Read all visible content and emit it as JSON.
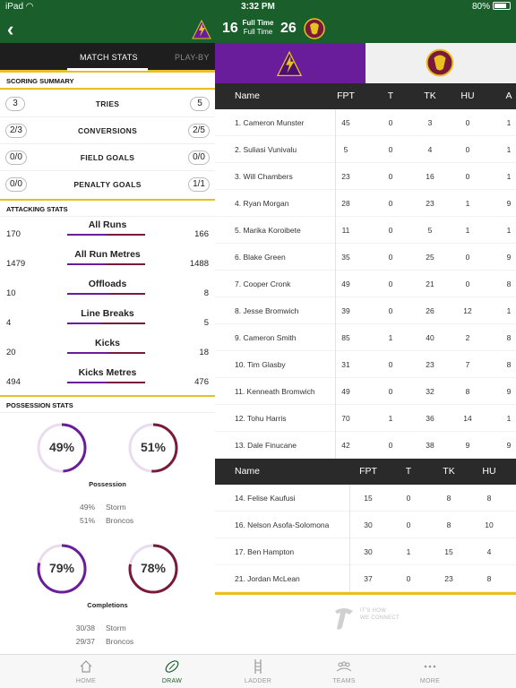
{
  "status_bar": {
    "device": "iPad",
    "time": "3:32 PM",
    "battery": "80%",
    "battery_level": 0.8
  },
  "header": {
    "home_score": "16",
    "away_score": "26",
    "status_line1": "Full Time",
    "status_line2": "Full Time",
    "back_icon": "chevron-left-icon"
  },
  "tabs": {
    "active": "MATCH STATS",
    "inactive": "PLAY-BY"
  },
  "scoring_summary": {
    "title": "SCORING SUMMARY",
    "rows": [
      {
        "label": "TRIES",
        "home": "3",
        "away": "5"
      },
      {
        "label": "CONVERSIONS",
        "home": "2/3",
        "away": "2/5"
      },
      {
        "label": "FIELD GOALS",
        "home": "0/0",
        "away": "0/0"
      },
      {
        "label": "PENALTY GOALS",
        "home": "0/0",
        "away": "1/1"
      }
    ]
  },
  "attacking_stats": {
    "title": "ATTACKING STATS",
    "rows": [
      {
        "label": "All Runs",
        "home": "170",
        "away": "166",
        "home_share": 0.506
      },
      {
        "label": "All Run Metres",
        "home": "1479",
        "away": "1488",
        "home_share": 0.498
      },
      {
        "label": "Offloads",
        "home": "10",
        "away": "8",
        "home_share": 0.556
      },
      {
        "label": "Line Breaks",
        "home": "4",
        "away": "5",
        "home_share": 0.444
      },
      {
        "label": "Kicks",
        "home": "20",
        "away": "18",
        "home_share": 0.526
      },
      {
        "label": "Kicks Metres",
        "home": "494",
        "away": "476",
        "home_share": 0.509
      }
    ]
  },
  "possession_stats": {
    "title": "POSSESSION STATS",
    "blocks": [
      {
        "title": "Possession",
        "home_pct": "49%",
        "away_pct": "51%",
        "home_value": 49,
        "away_value": 51,
        "lines": [
          {
            "value": "49%",
            "team": "Storm"
          },
          {
            "value": "51%",
            "team": "Broncos"
          }
        ]
      },
      {
        "title": "Completions",
        "home_pct": "79%",
        "away_pct": "78%",
        "home_value": 79,
        "away_value": 78,
        "lines": [
          {
            "value": "30/38",
            "team": "Storm"
          },
          {
            "value": "29/37",
            "team": "Broncos"
          }
        ]
      }
    ]
  },
  "player_table": {
    "headers": [
      "Name",
      "FPT",
      "T",
      "TK",
      "HU",
      "A"
    ],
    "rows": [
      {
        "name": "1. Cameron Munster",
        "fpt": "45",
        "t": "0",
        "tk": "3",
        "hu": "0",
        "a": "1"
      },
      {
        "name": "2. Suliasi Vunivalu",
        "fpt": "5",
        "t": "0",
        "tk": "4",
        "hu": "0",
        "a": "1"
      },
      {
        "name": "3. Will Chambers",
        "fpt": "23",
        "t": "0",
        "tk": "16",
        "hu": "0",
        "a": "1"
      },
      {
        "name": "4. Ryan Morgan",
        "fpt": "28",
        "t": "0",
        "tk": "23",
        "hu": "1",
        "a": "9"
      },
      {
        "name": "5. Marika Koroibete",
        "fpt": "11",
        "t": "0",
        "tk": "5",
        "hu": "1",
        "a": "1"
      },
      {
        "name": "6. Blake Green",
        "fpt": "35",
        "t": "0",
        "tk": "25",
        "hu": "0",
        "a": "9"
      },
      {
        "name": "7. Cooper Cronk",
        "fpt": "49",
        "t": "0",
        "tk": "21",
        "hu": "0",
        "a": "8"
      },
      {
        "name": "8. Jesse Bromwich",
        "fpt": "39",
        "t": "0",
        "tk": "26",
        "hu": "12",
        "a": "1"
      },
      {
        "name": "9. Cameron Smith",
        "fpt": "85",
        "t": "1",
        "tk": "40",
        "hu": "2",
        "a": "8"
      },
      {
        "name": "10. Tim Glasby",
        "fpt": "31",
        "t": "0",
        "tk": "23",
        "hu": "7",
        "a": "8"
      },
      {
        "name": "11. Kenneath Bromwich",
        "fpt": "49",
        "t": "0",
        "tk": "32",
        "hu": "8",
        "a": "9"
      },
      {
        "name": "12. Tohu Harris",
        "fpt": "70",
        "t": "1",
        "tk": "36",
        "hu": "14",
        "a": "1"
      },
      {
        "name": "13. Dale Finucane",
        "fpt": "42",
        "t": "0",
        "tk": "38",
        "hu": "9",
        "a": "9"
      }
    ]
  },
  "bench_table": {
    "headers": [
      "Name",
      "FPT",
      "T",
      "TK",
      "HU"
    ],
    "rows": [
      {
        "name": "14. Felise  Kaufusi",
        "fpt": "15",
        "t": "0",
        "tk": "8",
        "hu": "8"
      },
      {
        "name": "16. Nelson Asofa-Solomona",
        "fpt": "30",
        "t": "0",
        "tk": "8",
        "hu": "10"
      },
      {
        "name": "17. Ben Hampton",
        "fpt": "30",
        "t": "1",
        "tk": "15",
        "hu": "4"
      },
      {
        "name": "21. Jordan McLean",
        "fpt": "37",
        "t": "0",
        "tk": "23",
        "hu": "8"
      }
    ]
  },
  "sponsor": {
    "line1": "IT'S HOW",
    "line2": "WE CONNECT"
  },
  "bottom_nav": [
    {
      "label": "HOME",
      "icon": "home-icon",
      "active": false
    },
    {
      "label": "DRAW",
      "icon": "football-icon",
      "active": true
    },
    {
      "label": "LADDER",
      "icon": "ladder-icon",
      "active": false
    },
    {
      "label": "TEAMS",
      "icon": "teams-icon",
      "active": false
    },
    {
      "label": "MORE",
      "icon": "more-icon",
      "active": false
    }
  ],
  "colors": {
    "storm": "#6a1d9a",
    "broncos": "#7a1a3a",
    "header_green": "#1a5e2c",
    "accent_yellow": "#e8c020"
  }
}
